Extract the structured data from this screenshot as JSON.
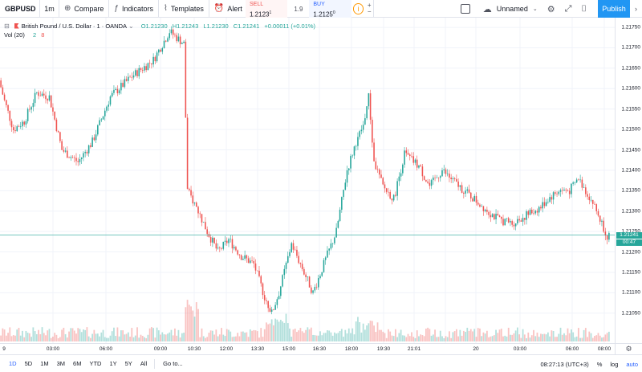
{
  "toolbar": {
    "symbol": "GBPUSD",
    "interval": "1m",
    "compare_label": "Compare",
    "indicators_label": "Indicators",
    "templates_label": "Templates",
    "alert_label": "Alert",
    "sell_label": "SELL",
    "sell_price": "1.2123",
    "sell_sup": "1",
    "spread": "1.9",
    "buy_label": "BUY",
    "buy_price": "1.2125",
    "buy_sup": "0",
    "info_icon": "i",
    "layout_name": "Unnamed",
    "publish_label": "Publish"
  },
  "legend": {
    "title": "British Pound / U.S. Dollar · 1 · OANDA",
    "open": "O1.21230",
    "high": "H1.21243",
    "low": "L1.21230",
    "close": "C1.21241",
    "change": "+0.00011 (+0.01%)",
    "vol_label": "Vol (20)",
    "vol_up": "2",
    "vol_down": "8"
  },
  "price_scale": {
    "ticks": [
      "1.21750",
      "1.21700",
      "1.21650",
      "1.21600",
      "1.21550",
      "1.21500",
      "1.21450",
      "1.21400",
      "1.21350",
      "1.21300",
      "1.21250",
      "1.21200",
      "1.21150",
      "1.21100",
      "1.21050"
    ],
    "current_price": "1.21241",
    "countdown": "00:47"
  },
  "time_axis": {
    "labels": [
      "9",
      "03:00",
      "06:00",
      "09:00",
      "10:30",
      "12:00",
      "13:30",
      "15:00",
      "16:30",
      "18:00",
      "19:30",
      "21:01",
      "20",
      "03:00",
      "06:00",
      "08:00"
    ]
  },
  "bottom_bar": {
    "ranges": [
      "1D",
      "5D",
      "1M",
      "3M",
      "6M",
      "YTD",
      "1Y",
      "5Y",
      "All"
    ],
    "goto_label": "Go to...",
    "clock": "08:27:13 (UTC+3)",
    "percent": "%",
    "log": "log",
    "auto": "auto"
  },
  "colors": {
    "up": "#26a69a",
    "down": "#ef5350",
    "accent": "#2962ff",
    "publish": "#2196f3"
  },
  "chart_data": {
    "type": "candlestick",
    "symbol": "GBPUSD",
    "ylim": [
      1.2102,
      1.2176
    ],
    "anchors": [
      [
        0,
        1.2162
      ],
      [
        3,
        1.2157
      ],
      [
        8,
        1.215
      ],
      [
        14,
        1.2152
      ],
      [
        21,
        1.2159
      ],
      [
        28,
        1.2158
      ],
      [
        35,
        1.2145
      ],
      [
        44,
        1.2142
      ],
      [
        52,
        1.2147
      ],
      [
        62,
        1.2158
      ],
      [
        74,
        1.2163
      ],
      [
        86,
        1.2167
      ],
      [
        95,
        1.2174
      ],
      [
        103,
        1.2171
      ],
      [
        105,
        1.2135
      ],
      [
        110,
        1.2131
      ],
      [
        116,
        1.2125
      ],
      [
        122,
        1.212
      ],
      [
        128,
        1.2123
      ],
      [
        135,
        1.2119
      ],
      [
        142,
        1.2117
      ],
      [
        148,
        1.2109
      ],
      [
        152,
        1.2105
      ],
      [
        156,
        1.211
      ],
      [
        163,
        1.2122
      ],
      [
        170,
        1.2115
      ],
      [
        175,
        1.211
      ],
      [
        181,
        1.2117
      ],
      [
        188,
        1.2125
      ],
      [
        194,
        1.214
      ],
      [
        199,
        1.2147
      ],
      [
        203,
        1.2151
      ],
      [
        206,
        1.2158
      ],
      [
        209,
        1.2142
      ],
      [
        214,
        1.2136
      ],
      [
        220,
        1.2133
      ],
      [
        226,
        1.2144
      ],
      [
        234,
        1.2141
      ],
      [
        240,
        1.2136
      ],
      [
        247,
        1.214
      ],
      [
        254,
        1.2137
      ],
      [
        262,
        1.2134
      ],
      [
        270,
        1.2131
      ],
      [
        278,
        1.2128
      ],
      [
        286,
        1.2127
      ],
      [
        294,
        1.2129
      ],
      [
        302,
        1.2131
      ],
      [
        306,
        1.2133
      ],
      [
        312,
        1.2135
      ],
      [
        318,
        1.2135
      ],
      [
        323,
        1.2138
      ],
      [
        327,
        1.2135
      ],
      [
        331,
        1.2132
      ],
      [
        335,
        1.2128
      ],
      [
        339,
        1.2124
      ]
    ],
    "volume_max": 40
  }
}
